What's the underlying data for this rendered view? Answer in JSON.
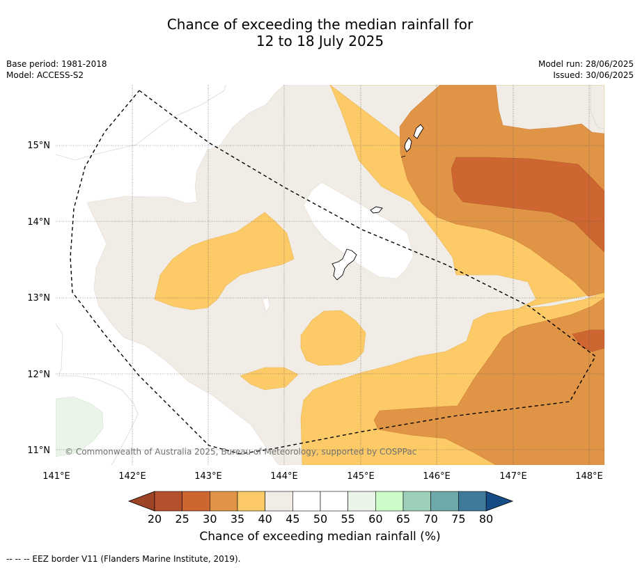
{
  "title": {
    "line1": "Chance of exceeding the median rainfall for",
    "line2": "12 to 18 July 2025"
  },
  "meta_left": {
    "base_period": "Base period: 1981-2018",
    "model": "Model: ACCESS-S2"
  },
  "meta_right": {
    "model_run": "Model run: 28/06/2025",
    "issued": "Issued: 30/06/2025"
  },
  "map": {
    "lon_labels": [
      "141°E",
      "142°E",
      "143°E",
      "144°E",
      "145°E",
      "146°E",
      "147°E",
      "148°E"
    ],
    "lat_labels": [
      "15°N",
      "14°N",
      "13°N",
      "12°N",
      "11°N"
    ],
    "copyright": "© Commonwealth of Australia 2025, Bureau of Meteorology, supported by COSPPac"
  },
  "colorbar": {
    "ticks": [
      "20",
      "25",
      "30",
      "35",
      "40",
      "45",
      "50",
      "55",
      "60",
      "65",
      "70",
      "75",
      "80"
    ],
    "colors": {
      "below20": "#9e4426",
      "c20_25": "#b4502c",
      "c25_30": "#cd6630",
      "c30_35": "#e09446",
      "c35_40": "#fdca68",
      "c40_45": "#f1ece5",
      "c45_50": "#ffffff",
      "c50_55": "#ffffff",
      "c55_60": "#eaf4e8",
      "c60_65": "#cbfcca",
      "c65_70": "#9dcfb9",
      "c70_75": "#6fa8a8",
      "c75_80": "#407a9a",
      "above80": "#164c86"
    },
    "label": "Chance of exceeding median rainfall (%)"
  },
  "footer": "--  --  -- EEZ border V11 (Flanders Marine Institute, 2019)."
}
